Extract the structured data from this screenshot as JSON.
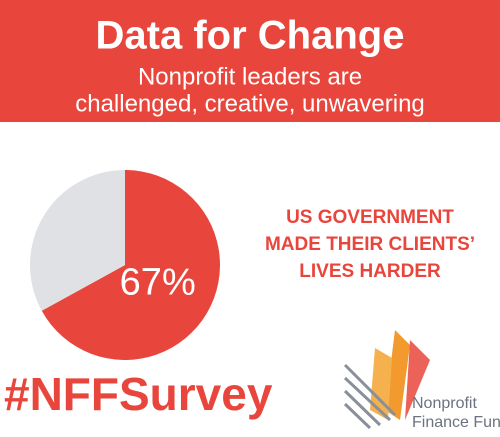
{
  "chart_data": {
    "type": "pie",
    "title": "Data for Change",
    "subtitle": [
      "Nonprofit leaders are",
      "challenged, creative, unwavering"
    ],
    "annotation": [
      "US GOVERNMENT",
      "MADE THEIR CLIENTS’",
      "LIVES HARDER"
    ],
    "hashtag": "#NFFSurvey",
    "logo": [
      "Nonprofit",
      "Finance Fund"
    ],
    "categories": [
      null,
      null
    ],
    "values": [
      67,
      33
    ],
    "value_labels": [
      "67%",
      null
    ],
    "colors": [
      "#e8463c",
      "#dfe1e4"
    ]
  }
}
